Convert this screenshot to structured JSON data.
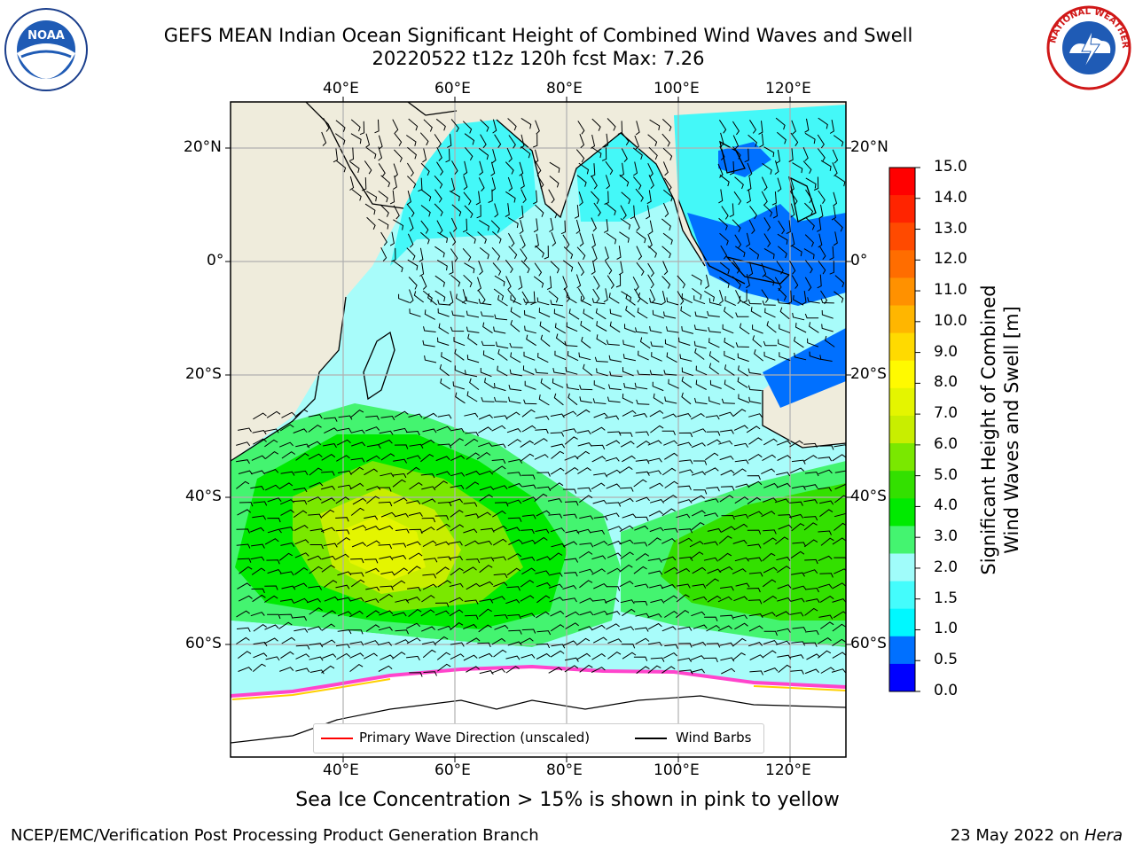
{
  "header": {
    "title_line1": "GEFS MEAN Indian Ocean Significant Height of Combined Wind Waves and Swell",
    "title_line2": "20220522 t12z 120h fcst    Max: 7.26"
  },
  "logos": {
    "left": {
      "icon": "noaa-logo-icon",
      "text": "NOAA",
      "ring_text": "NATIONAL OCEANIC AND ATMOSPHERIC ADMINISTRATION · U.S. DEPARTMENT OF COMMERCE"
    },
    "right": {
      "icon": "nws-logo-icon",
      "ring_text": "NATIONAL WEATHER SERVICE"
    }
  },
  "map": {
    "lon_labels": [
      "40°E",
      "60°E",
      "80°E",
      "100°E",
      "120°E"
    ],
    "lat_labels": [
      "20°N",
      "0°",
      "20°S",
      "40°S",
      "60°S"
    ],
    "colors": {
      "land": "#efecdc",
      "ice": "#ffffff",
      "ice_edge": "#ff44cc",
      "wind_barb": "#000000",
      "wave_arrow": "#ff0000",
      "grid": "#b0b0b0"
    }
  },
  "legend": {
    "wave_label": "Primary Wave Direction (unscaled)",
    "barb_label": "Wind Barbs"
  },
  "colorbar": {
    "title_line1": "Significant Height of Combined",
    "title_line2": "Wind Waves and Swell [m]",
    "ticks": [
      "15.0",
      "14.0",
      "13.0",
      "12.0",
      "11.0",
      "10.0",
      "9.0",
      "8.0",
      "7.0",
      "6.0",
      "5.0",
      "4.0",
      "3.0",
      "2.0",
      "1.5",
      "1.0",
      "0.5",
      "0.0"
    ],
    "colors_top_to_bottom": [
      "#ff0000",
      "#ff2400",
      "#ff4a00",
      "#ff6d00",
      "#ff9100",
      "#ffb600",
      "#ffda00",
      "#fffa00",
      "#e4f500",
      "#c8ee00",
      "#7ae800",
      "#33e000",
      "#00ea00",
      "#44f470",
      "#a0fcfa",
      "#44fcfc",
      "#00f8ff",
      "#0070ff",
      "#0000ff"
    ]
  },
  "note": "Sea Ice Concentration > 15% is shown in pink to yellow",
  "footer": {
    "left": "NCEP/EMC/Verification Post Processing Product Generation Branch",
    "right_date": "23 May 2022 on",
    "right_host": "Hera"
  }
}
